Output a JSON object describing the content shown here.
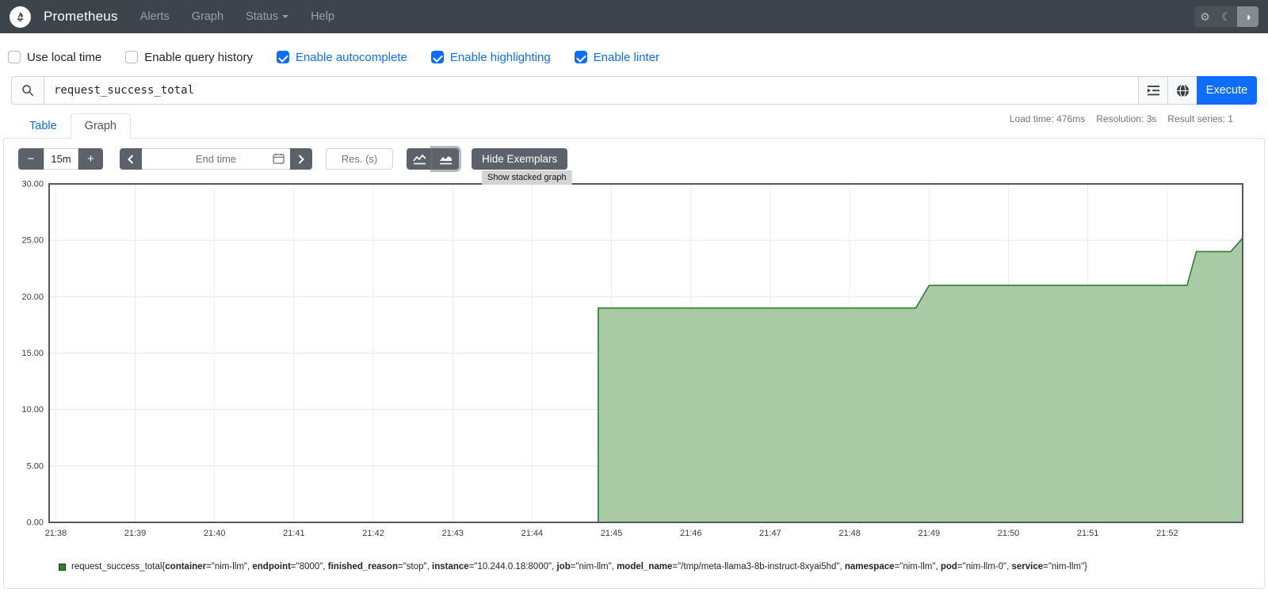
{
  "colors": {
    "accent": "#0d6efd",
    "navbar": "#3d444b",
    "series_stroke": "#2f7e31",
    "series_fill": "#a8cba3",
    "chart_border": "#54585c"
  },
  "navbar": {
    "brand": "Prometheus",
    "items": [
      {
        "label": "Alerts"
      },
      {
        "label": "Graph"
      },
      {
        "label": "Status"
      },
      {
        "label": "Help"
      }
    ]
  },
  "options": {
    "checkboxes": [
      {
        "label": "Use local time",
        "checked": false
      },
      {
        "label": "Enable query history",
        "checked": false
      },
      {
        "label": "Enable autocomplete",
        "checked": true
      },
      {
        "label": "Enable highlighting",
        "checked": true
      },
      {
        "label": "Enable linter",
        "checked": true
      }
    ]
  },
  "query": {
    "value": "request_success_total",
    "execute_label": "Execute"
  },
  "stats": {
    "load_time": "Load time: 476ms",
    "resolution": "Resolution: 3s",
    "result_series": "Result series: 1"
  },
  "tabs": {
    "table": "Table",
    "graph": "Graph"
  },
  "controls": {
    "minus": "−",
    "duration": "15m",
    "plus": "+",
    "end_time_placeholder": "End time",
    "res_placeholder": "Res. (s)",
    "hide_exemplars": "Hide Exemplars",
    "tooltip": "Show stacked graph"
  },
  "chart_data": {
    "type": "area",
    "title": "",
    "xlabel": "",
    "ylabel": "",
    "x_start": "21:37:55",
    "x_end": "21:52:57",
    "ylim": [
      0,
      30
    ],
    "yticks": [
      0,
      5,
      10,
      15,
      20,
      25,
      30
    ],
    "xticks": [
      "21:38",
      "21:39",
      "21:40",
      "21:41",
      "21:42",
      "21:43",
      "21:44",
      "21:45",
      "21:46",
      "21:47",
      "21:48",
      "21:49",
      "21:50",
      "21:51",
      "21:52"
    ],
    "grid": true,
    "legend_position": "bottom",
    "series": [
      {
        "name": "request_success_total",
        "color": "#2f7e31",
        "fill": "#a8cba3",
        "points": [
          {
            "t": "21:44:50",
            "v": 19
          },
          {
            "t": "21:48:50",
            "v": 19
          },
          {
            "t": "21:49:00",
            "v": 21
          },
          {
            "t": "21:52:15",
            "v": 21
          },
          {
            "t": "21:52:22",
            "v": 24
          },
          {
            "t": "21:52:48",
            "v": 24
          },
          {
            "t": "21:52:57",
            "v": 25.2
          }
        ]
      }
    ]
  },
  "legend": {
    "metric": "request_success_total",
    "labels": [
      {
        "key": "container",
        "value": "nim-llm"
      },
      {
        "key": "endpoint",
        "value": "8000"
      },
      {
        "key": "finished_reason",
        "value": "stop"
      },
      {
        "key": "instance",
        "value": "10.244.0.18:8000"
      },
      {
        "key": "job",
        "value": "nim-llm"
      },
      {
        "key": "model_name",
        "value": "/tmp/meta-llama3-8b-instruct-8xyai5hd"
      },
      {
        "key": "namespace",
        "value": "nim-llm"
      },
      {
        "key": "pod",
        "value": "nim-llm-0"
      },
      {
        "key": "service",
        "value": "nim-llm"
      }
    ]
  }
}
